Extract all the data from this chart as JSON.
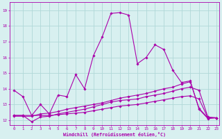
{
  "xlabel": "Windchill (Refroidissement éolien,°C)",
  "background_color": "#d8f0f0",
  "grid_color": "#b0d8d8",
  "line_color": "#aa00aa",
  "xlim": [
    -0.5,
    23.3
  ],
  "ylim": [
    11.7,
    19.5
  ],
  "yticks": [
    12,
    13,
    14,
    15,
    16,
    17,
    18,
    19
  ],
  "xticks": [
    0,
    1,
    2,
    3,
    4,
    5,
    6,
    7,
    8,
    9,
    10,
    11,
    12,
    13,
    14,
    15,
    16,
    17,
    18,
    19,
    20,
    21,
    22,
    23
  ],
  "series": [
    {
      "x": [
        0,
        1,
        2,
        3,
        4,
        5,
        6,
        7,
        8,
        9,
        10,
        11,
        12,
        13,
        14,
        15,
        16,
        17,
        18,
        19,
        20,
        21,
        22,
        23
      ],
      "y": [
        13.9,
        13.5,
        12.3,
        13.0,
        12.4,
        13.6,
        13.5,
        14.9,
        14.0,
        16.1,
        17.3,
        18.8,
        18.85,
        18.7,
        15.6,
        16.0,
        16.8,
        16.5,
        15.2,
        14.4,
        14.5,
        12.7,
        12.1,
        12.15
      ]
    },
    {
      "x": [
        0,
        1,
        2,
        3,
        4,
        5,
        6,
        7,
        8,
        9,
        10,
        11,
        12,
        13,
        14,
        15,
        16,
        17,
        18,
        19,
        20,
        21,
        22,
        23
      ],
      "y": [
        12.3,
        12.3,
        11.9,
        12.2,
        12.25,
        12.4,
        12.5,
        12.6,
        12.7,
        12.85,
        13.0,
        13.15,
        13.25,
        13.3,
        13.35,
        13.5,
        13.6,
        13.7,
        13.85,
        14.0,
        14.1,
        13.9,
        12.2,
        12.15
      ]
    },
    {
      "x": [
        0,
        1,
        2,
        3,
        4,
        5,
        6,
        7,
        8,
        9,
        10,
        11,
        12,
        13,
        14,
        15,
        16,
        17,
        18,
        19,
        20,
        21,
        22,
        23
      ],
      "y": [
        12.25,
        12.25,
        12.25,
        12.4,
        12.45,
        12.55,
        12.7,
        12.8,
        12.9,
        13.0,
        13.1,
        13.25,
        13.4,
        13.5,
        13.6,
        13.7,
        13.85,
        14.0,
        14.1,
        14.3,
        14.45,
        12.75,
        12.15,
        12.15
      ]
    },
    {
      "x": [
        0,
        1,
        2,
        3,
        4,
        5,
        6,
        7,
        8,
        9,
        10,
        11,
        12,
        13,
        14,
        15,
        16,
        17,
        18,
        19,
        20,
        21,
        22,
        23
      ],
      "y": [
        12.3,
        12.3,
        12.3,
        12.3,
        12.3,
        12.35,
        12.4,
        12.45,
        12.5,
        12.6,
        12.7,
        12.8,
        12.9,
        12.95,
        13.0,
        13.1,
        13.2,
        13.3,
        13.4,
        13.5,
        13.55,
        13.35,
        12.15,
        12.15
      ]
    }
  ]
}
